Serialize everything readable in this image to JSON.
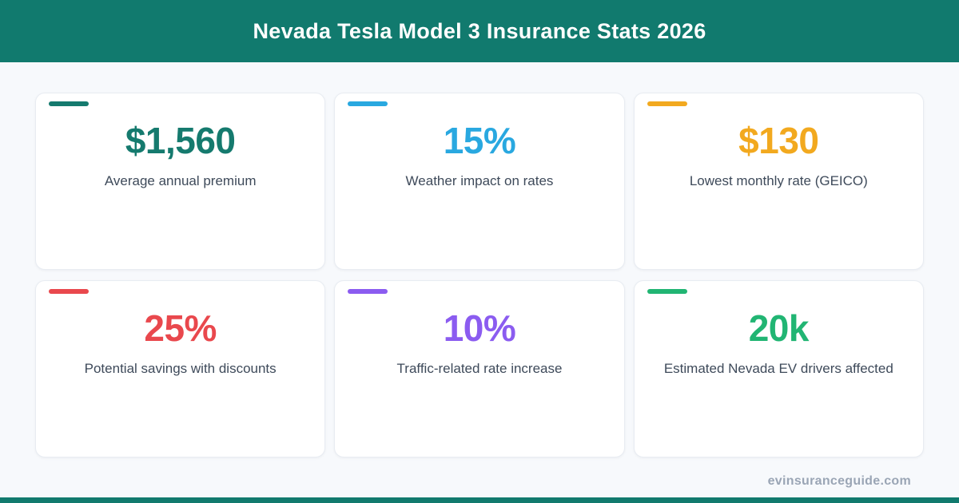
{
  "header": {
    "title": "Nevada Tesla Model 3 Insurance Stats 2026",
    "background": "#117a6e",
    "text_color": "#ffffff"
  },
  "stats": [
    {
      "value": "$1,560",
      "label": "Average annual premium",
      "color": "#157a6e"
    },
    {
      "value": "15%",
      "label": "Weather impact on rates",
      "color": "#29a8e0"
    },
    {
      "value": "$130",
      "label": "Lowest monthly rate (GEICO)",
      "color": "#f2a91f"
    },
    {
      "value": "25%",
      "label": "Potential savings with discounts",
      "color": "#e9484d"
    },
    {
      "value": "10%",
      "label": "Traffic-related rate increase",
      "color": "#8b5cf0"
    },
    {
      "value": "20k",
      "label": "Estimated Nevada EV drivers affected",
      "color": "#21b573"
    }
  ],
  "footer": {
    "website": "evinsuranceguide.com",
    "bar_color": "#117a6e"
  },
  "chart_data": {
    "type": "table",
    "title": "Nevada Tesla Model 3 Insurance Stats 2026",
    "categories": [
      "Average annual premium",
      "Weather impact on rates",
      "Lowest monthly rate (GEICO)",
      "Potential savings with discounts",
      "Traffic-related rate increase",
      "Estimated Nevada EV drivers affected"
    ],
    "values": [
      "$1,560",
      "15%",
      "$130",
      "25%",
      "10%",
      "20k"
    ],
    "source": "evinsuranceguide.com"
  }
}
